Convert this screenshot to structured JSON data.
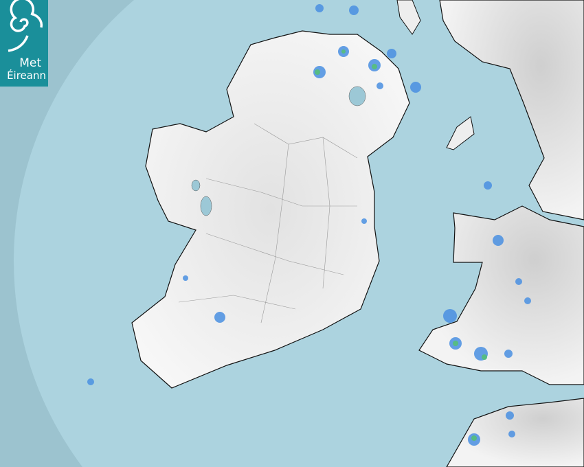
{
  "logo": {
    "line1": "Met",
    "line2": "Éireann",
    "color": "#1a8f9a"
  },
  "colors": {
    "outside_coverage": "#9cc3cf",
    "sea": "#acd3df",
    "land": "#f0f0f0",
    "rain_light": "#4a90e2",
    "rain_moderate": "#3cb371"
  }
}
